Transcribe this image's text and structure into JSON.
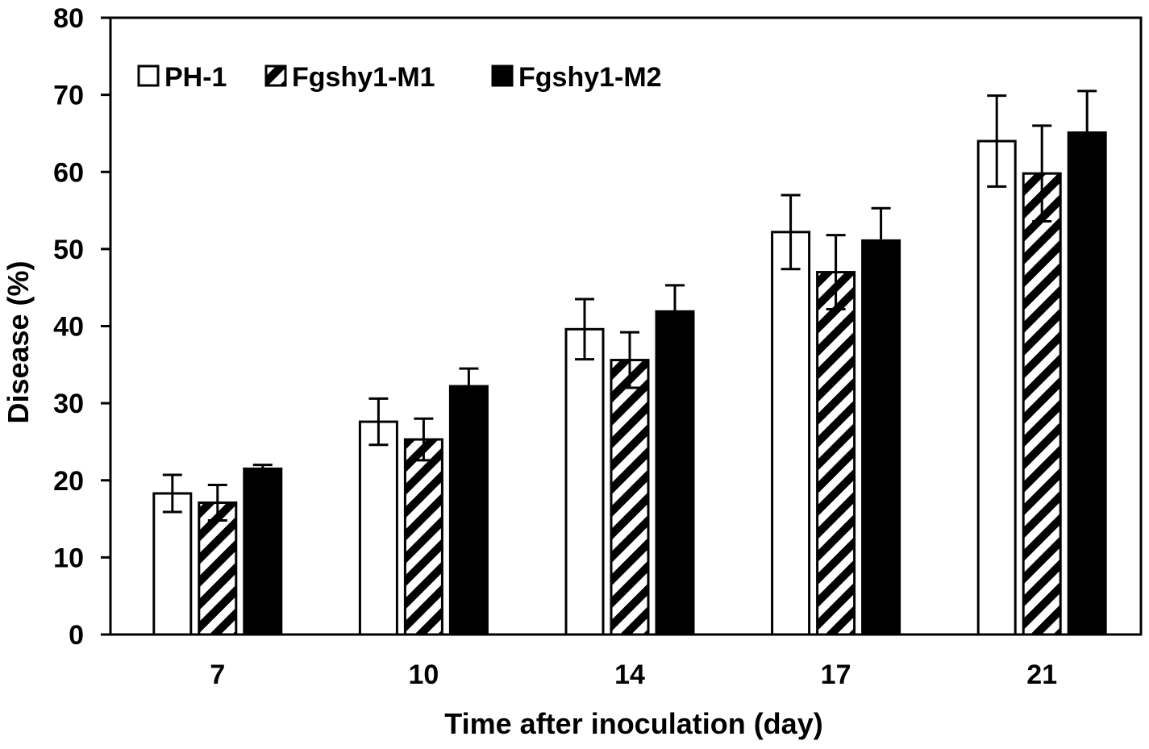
{
  "chart_data": {
    "type": "bar",
    "title": "",
    "xlabel": "Time after inoculation (day)",
    "ylabel": "Disease (%)",
    "categories": [
      "7",
      "10",
      "14",
      "17",
      "21"
    ],
    "ylim": [
      0,
      80
    ],
    "yticks": [
      0,
      10,
      20,
      30,
      40,
      50,
      60,
      70,
      80
    ],
    "grid": false,
    "legend_position": "top-left",
    "series": [
      {
        "name": "PH-1",
        "fill": "white",
        "values": [
          18.3,
          27.6,
          39.6,
          52.2,
          64.0
        ],
        "errors": [
          2.4,
          3.0,
          3.9,
          4.8,
          5.9
        ]
      },
      {
        "name": "Fgshy1-M1",
        "fill": "hatched",
        "values": [
          17.1,
          25.3,
          35.6,
          47.0,
          59.8
        ],
        "errors": [
          2.3,
          2.7,
          3.6,
          4.8,
          6.2
        ]
      },
      {
        "name": "Fgshy1-M2",
        "fill": "black",
        "values": [
          21.5,
          32.2,
          41.9,
          51.1,
          65.1
        ],
        "errors": [
          0.5,
          2.3,
          3.4,
          4.2,
          5.4
        ]
      }
    ],
    "colors": {
      "stroke": "#000000",
      "white": "#ffffff",
      "black": "#000000"
    }
  }
}
